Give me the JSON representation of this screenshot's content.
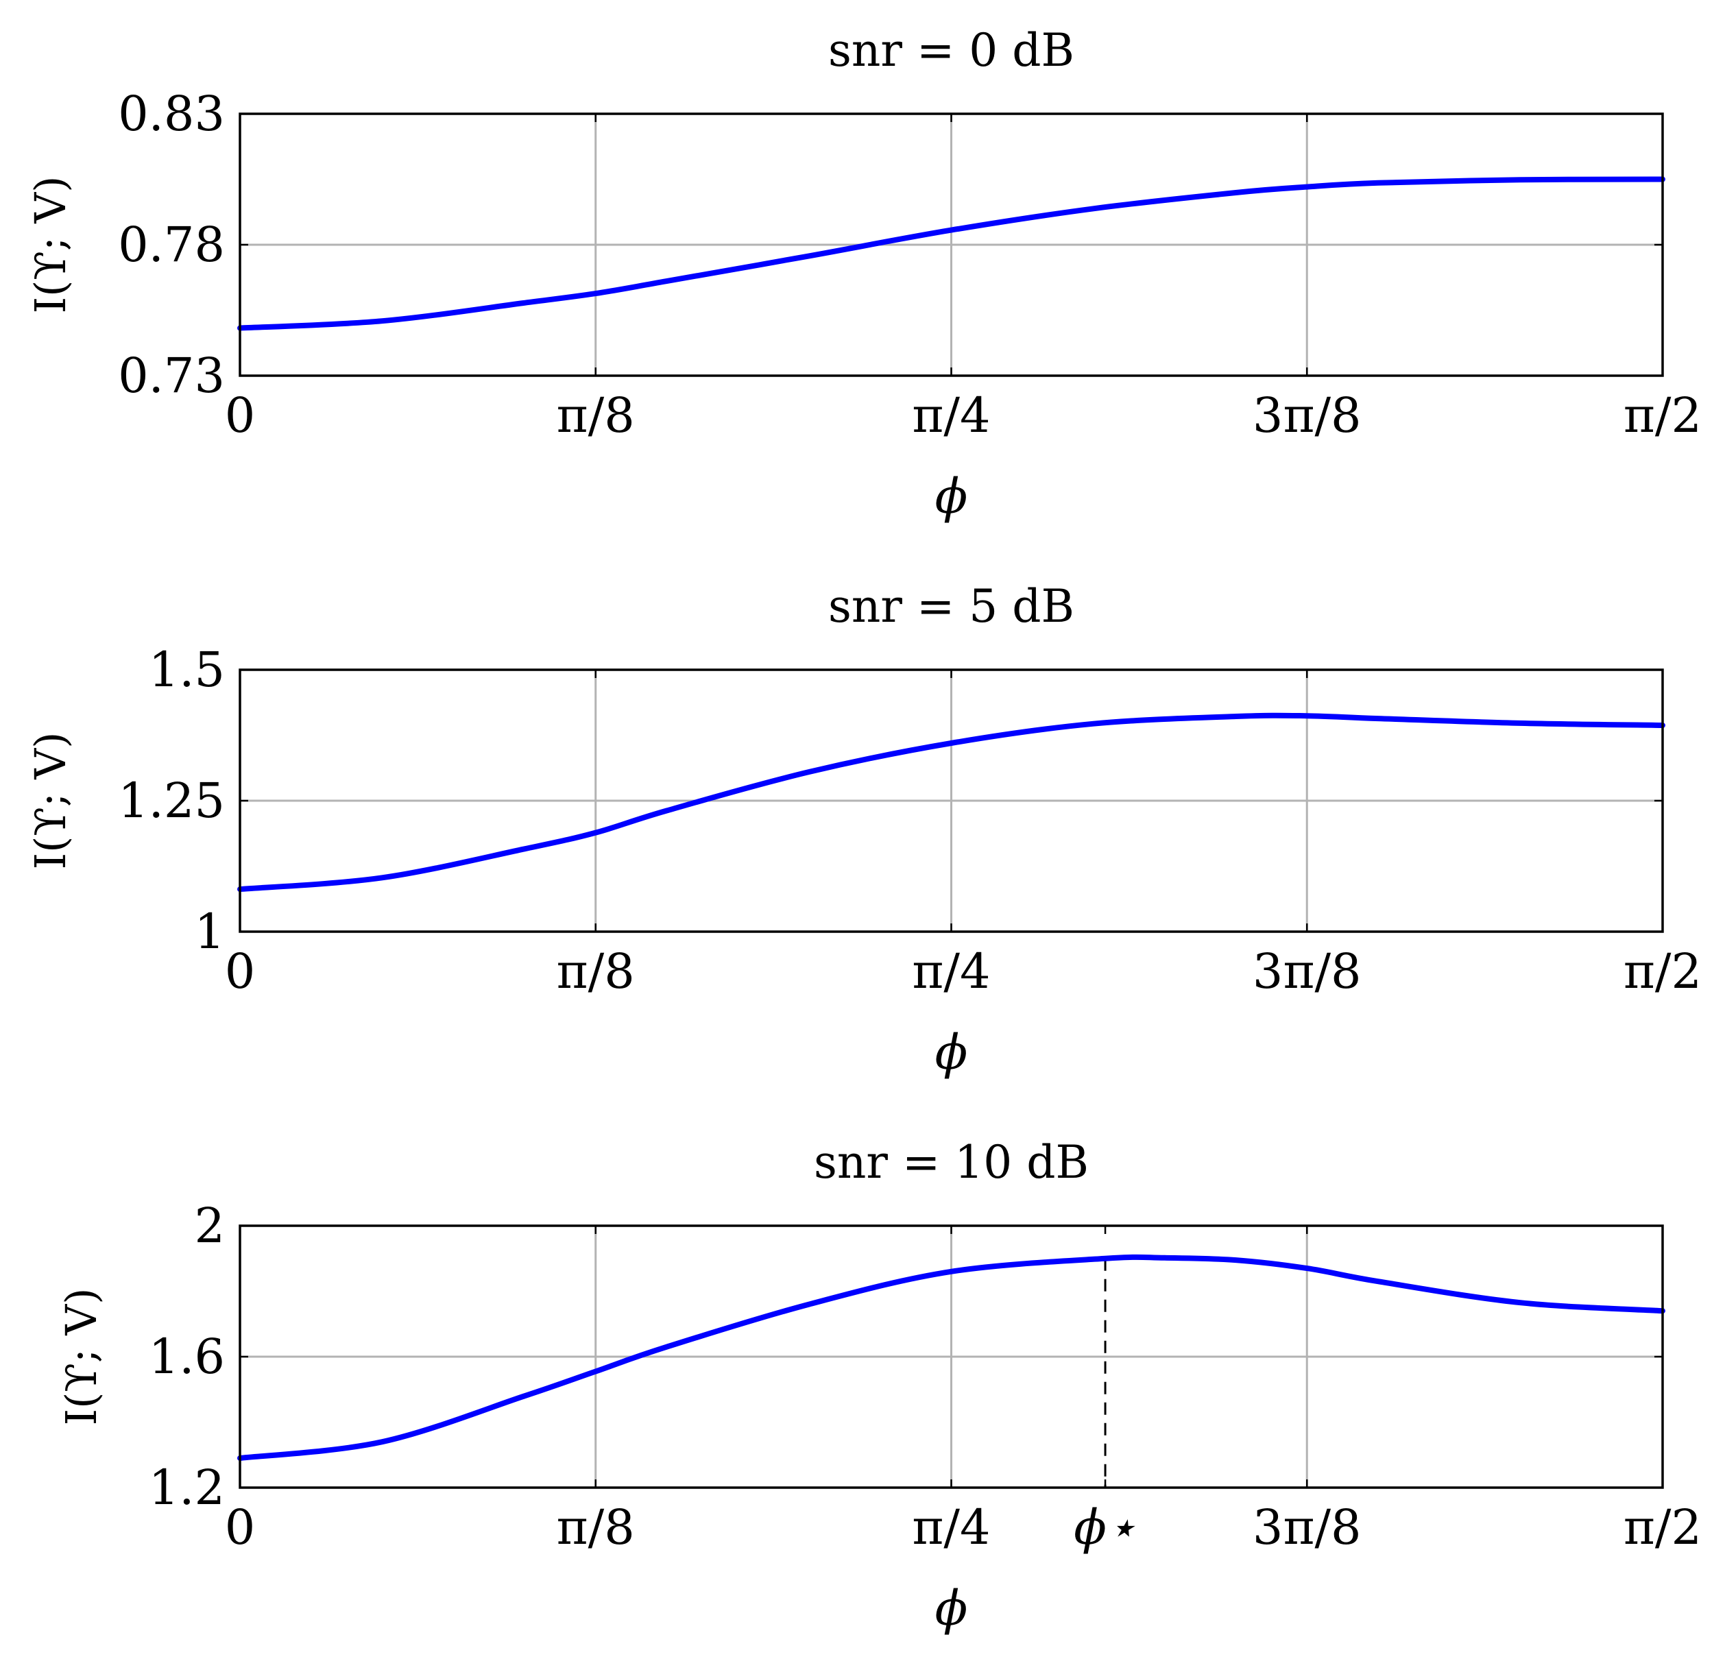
{
  "chart_data": [
    {
      "type": "line",
      "title": "snr = 0 dB",
      "xlabel": "ϕ",
      "ylabel": "I(ϒ; V)",
      "xlim": [
        0,
        1.5708
      ],
      "ylim": [
        0.73,
        0.83
      ],
      "xticks": [
        0,
        0.3927,
        0.7854,
        1.1781,
        1.5708
      ],
      "xtick_labels": [
        "0",
        "π/8",
        "π/4",
        "3π/8",
        "π/2"
      ],
      "yticks": [
        0.73,
        0.78,
        0.83
      ],
      "ytick_labels": [
        "0.73",
        "0.78",
        "0.83"
      ],
      "grid": true,
      "series": [
        {
          "name": "I(Y;V)",
          "color": "#0000ff",
          "x": [
            0,
            0.1571,
            0.3142,
            0.3927,
            0.4712,
            0.6283,
            0.7854,
            0.9425,
            1.0996,
            1.1781,
            1.2566,
            1.4137,
            1.5708
          ],
          "y": [
            0.7482,
            0.7509,
            0.7578,
            0.7614,
            0.7661,
            0.7757,
            0.7856,
            0.7938,
            0.7999,
            0.8021,
            0.8036,
            0.8048,
            0.805
          ]
        }
      ]
    },
    {
      "type": "line",
      "title": "snr = 5 dB",
      "xlabel": "ϕ",
      "ylabel": "I(ϒ; V)",
      "xlim": [
        0,
        1.5708
      ],
      "ylim": [
        1.0,
        1.5
      ],
      "xticks": [
        0,
        0.3927,
        0.7854,
        1.1781,
        1.5708
      ],
      "xtick_labels": [
        "0",
        "π/8",
        "π/4",
        "3π/8",
        "π/2"
      ],
      "yticks": [
        1.0,
        1.25,
        1.5
      ],
      "ytick_labels": [
        "1",
        "1.25",
        "1.5"
      ],
      "grid": true,
      "series": [
        {
          "name": "I(Y;V)",
          "color": "#0000ff",
          "x": [
            0,
            0.1571,
            0.3142,
            0.3927,
            0.4712,
            0.6283,
            0.7854,
            0.9425,
            1.0996,
            1.1781,
            1.2566,
            1.4137,
            1.5708
          ],
          "y": [
            1.081,
            1.103,
            1.158,
            1.189,
            1.231,
            1.305,
            1.36,
            1.397,
            1.411,
            1.412,
            1.407,
            1.398,
            1.394
          ]
        }
      ]
    },
    {
      "type": "line",
      "title": "snr = 10 dB",
      "xlabel": "ϕ",
      "ylabel": "I(ϒ; V)",
      "xlim": [
        0,
        1.5708
      ],
      "ylim": [
        1.2,
        2.0
      ],
      "xticks": [
        0,
        0.3927,
        0.7854,
        0.9554,
        1.1781,
        1.5708
      ],
      "xtick_labels": [
        "0",
        "π/8",
        "π/4",
        "ϕ⋆",
        "3π/8",
        "π/2"
      ],
      "gridline_xticks": [
        0.3927,
        0.7854,
        1.1781
      ],
      "yticks": [
        1.2,
        1.6,
        2.0
      ],
      "ytick_labels": [
        "1.2",
        "1.6",
        "2"
      ],
      "grid": true,
      "marker": {
        "label": "ϕ⋆",
        "x": 0.9554,
        "y": 1.9,
        "style": "dashed"
      },
      "series": [
        {
          "name": "I(Y;V)",
          "color": "#0000ff",
          "x": [
            0,
            0.1571,
            0.3142,
            0.3927,
            0.4712,
            0.6283,
            0.7854,
            0.9554,
            1.021,
            1.0996,
            1.1781,
            1.2566,
            1.4137,
            1.5708
          ],
          "y": [
            1.29,
            1.34,
            1.48,
            1.555,
            1.63,
            1.76,
            1.86,
            1.9,
            1.902,
            1.895,
            1.87,
            1.83,
            1.765,
            1.74
          ]
        }
      ]
    }
  ]
}
